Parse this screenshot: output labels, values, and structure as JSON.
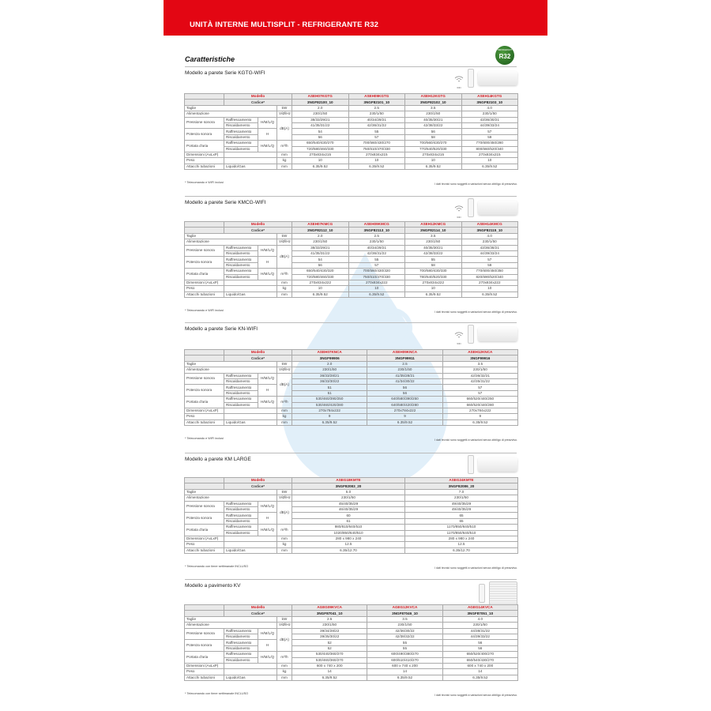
{
  "header": {
    "title": "UNITÀ INTERNE MULTISPLIT - REFRIGERANTE R32"
  },
  "page_title": "Caratteristiche",
  "badge": {
    "text": "R32",
    "small": "REFRIGERANT",
    "color": "#2f7a2a"
  },
  "colors": {
    "brand": "#e30613",
    "model_text": "#d71920"
  },
  "labels": {
    "modello": "Modello",
    "codice": "Codice*",
    "taglie": "Taglie",
    "alimentazione": "Alimentazione",
    "pressione": "Pressione sonora",
    "potenza": "Potenza sonora",
    "portata": "Portata d'aria",
    "dimensioni": "Dimensioni (AxLxP)",
    "peso": "Peso",
    "attacchi": "Attacchi tubazioni",
    "raffrescamento": "Raffrescamento",
    "riscaldamento": "Riscaldamento",
    "hmlq": "H/M/L/Q",
    "h": "H",
    "liquido_gas": "Liquido/Gas",
    "u_kw": "kW",
    "u_v": "V/Ø/Hz",
    "u_db": "dB(A)",
    "u_m3h": "m³/h",
    "u_mm": "mm",
    "u_kg": "kg",
    "disclaimer": "I dati tecnici sono soggetti a variazioni senza obbligo di preavviso."
  },
  "sections": [
    {
      "title": "Modello a parete Serie KGTG-WIFI",
      "icons": [
        "wifi-icon",
        "remote-control-icon",
        "wall-unit-icon"
      ],
      "wifi_label": "WIFI",
      "footnote": "* Telecomando e WIFI inclusi",
      "red_divider": true,
      "models": [
        {
          "model": "ASEH07KGTG",
          "code": "3NGF82100_10",
          "taglie": "2.0",
          "alim": "230/1/50",
          "p_raff": "38/33/29/21",
          "p_risc": "41/35/31/22",
          "w_raff": "54",
          "w_risc": "56",
          "a_raff": "650/540/430/270",
          "a_risc": "720/580/460/330",
          "dim": "270x834x215",
          "peso": "10",
          "att": "6.35/9.52"
        },
        {
          "model": "ASEH09KGTG",
          "code": "3NGF82101_10",
          "taglie": "2.5",
          "alim": "230/1/50",
          "p_raff": "40/34/29/21",
          "p_risc": "42/36/31/22",
          "w_raff": "55",
          "w_risc": "57",
          "a_raff": "700/560/430/270",
          "a_risc": "750/610/470/330",
          "dim": "270x834x215",
          "peso": "10",
          "att": "6.35/9.52"
        },
        {
          "model": "ASEH12KGTG",
          "code": "3NGF82102_10",
          "taglie": "3.5",
          "alim": "230/1/50",
          "p_raff": "40/35/30/21",
          "p_risc": "42/38/33/22",
          "w_raff": "56",
          "w_risc": "58",
          "a_raff": "700/560/430/270",
          "a_risc": "770/640/520/330",
          "dim": "270x834x215",
          "peso": "10",
          "att": "6.35/9.52"
        },
        {
          "model": "ASEH14KGTG",
          "code": "3NGF82103_10",
          "taglie": "4.0",
          "alim": "230/1/50",
          "p_raff": "43/36/30/21",
          "p_risc": "44/39/33/24",
          "w_raff": "57",
          "w_risc": "59",
          "a_raff": "770/600/450/280",
          "a_risc": "800/660/520/340",
          "dim": "270x834x215",
          "peso": "10",
          "att": "6.35/9.52"
        }
      ]
    },
    {
      "title": "Modello a parete Serie KMCG-WIFI",
      "icons": [
        "wifi-icon",
        "remote-control-icon",
        "wall-unit-icon"
      ],
      "wifi_label": "WIFI",
      "footnote": "* Telecomando e WIFI inclusi",
      "red_divider": false,
      "models": [
        {
          "model": "ASEH07KMCG",
          "code": "3NGF82112_10",
          "taglie": "2.0",
          "alim": "230/1/50",
          "p_raff": "38/33/29/21",
          "p_risc": "41/35/31/22",
          "w_raff": "54",
          "w_risc": "56",
          "a_raff": "650/540/430/320",
          "a_risc": "720/580/460/330",
          "dim": "270x834x222",
          "peso": "10",
          "att": "6.35/9.52"
        },
        {
          "model": "ASEH09KMCG",
          "code": "3NGF82113_10",
          "taglie": "2.5",
          "alim": "230/1/50",
          "p_raff": "40/34/29/21",
          "p_risc": "42/36/31/22",
          "w_raff": "55",
          "w_risc": "57",
          "a_raff": "700/560/430/320",
          "a_risc": "750/610/470/330",
          "dim": "270x834x222",
          "peso": "10",
          "att": "6.35/9.52"
        },
        {
          "model": "ASEH12KMCG",
          "code": "3NGF82114_10",
          "taglie": "3.5",
          "alim": "230/1/50",
          "p_raff": "40/35/30/21",
          "p_risc": "42/38/33/22",
          "w_raff": "55",
          "w_risc": "58",
          "a_raff": "700/580/430/330",
          "a_risc": "780/640/520/330",
          "dim": "270x834x222",
          "peso": "10",
          "att": "6.35/9.52"
        },
        {
          "model": "ASEH14KMCG",
          "code": "3NGF82115_10",
          "taglie": "4.0",
          "alim": "230/1/50",
          "p_raff": "43/36/38/21",
          "p_risc": "44/39/33/24",
          "w_raff": "57",
          "w_risc": "59",
          "a_raff": "770/600/450/350",
          "a_risc": "820/690/520/340",
          "dim": "270x834x222",
          "peso": "10",
          "att": "6.35/9.52"
        }
      ]
    },
    {
      "title": "Modello a parete Serie KN-WIFI",
      "icons": [
        "wifi-icon",
        "remote-control-icon",
        "wall-unit-icon"
      ],
      "wifi_label": "WIFI",
      "footnote": "* Telecomando e WIFI inclusi",
      "red_divider": false,
      "models": [
        {
          "model": "ASEH07KNCA",
          "code": "3NGF99906",
          "taglie": "2.0",
          "alim": "230/1/50",
          "p_raff": "36/33/28/21",
          "p_risc": "36/33/30/22",
          "w_raff": "51",
          "w_risc": "51",
          "a_raff": "530/460/390/250",
          "a_risc": "530/460/420/280",
          "dim": "270x784x222",
          "peso": "9",
          "att": "6.35/9.52"
        },
        {
          "model": "ASEH09KNCA",
          "code": "3NGF99911",
          "taglie": "2.5",
          "alim": "230/1/50",
          "p_raff": "41/35/28/21",
          "p_risc": "41/34/30/22",
          "w_raff": "56",
          "w_risc": "56",
          "a_raff": "640/580/390/250",
          "a_risc": "640/580/420/280",
          "dim": "270x784x222",
          "peso": "9",
          "att": "6.35/9.52"
        },
        {
          "model": "ASEH12KNCA",
          "code": "3NGF99916",
          "taglie": "3.5",
          "alim": "230/1/50",
          "p_raff": "42/36/32/21",
          "p_risc": "42/35/31/22",
          "w_raff": "57",
          "w_risc": "57",
          "a_raff": "660/520/440/250",
          "a_risc": "660/520/440/280",
          "dim": "270x784x222",
          "peso": "9",
          "att": "6.35/9.52"
        }
      ]
    },
    {
      "title": "Modello a parete KM LARGE",
      "icons": [
        "remote-control-icon",
        "wall-unit-icon"
      ],
      "footnote": "* Telecomando con timer settimanale INCLUSO",
      "red_divider": true,
      "models": [
        {
          "model": "ASEG18KMTE",
          "code": "3NGF82083_20",
          "taglie": "5.0",
          "alim": "230/1/50",
          "p_raff": "45/40/35/29",
          "p_risc": "46/40/35/29",
          "w_raff": "60",
          "w_risc": "61",
          "a_raff": "980/810/640/510",
          "a_risc": "1020/850/640/510",
          "dim": "280 x 980 x 240",
          "peso": "12.5",
          "att": "6.35/12.70"
        },
        {
          "model": "ASEG24KMTE",
          "code": "3NGF82086_20",
          "taglie": "7.0",
          "alim": "230/1/50",
          "p_raff": "49/40/35/29",
          "p_risc": "49/40/35/29",
          "w_raff": "65",
          "w_risc": "65",
          "a_raff": "1170/850/640/510",
          "a_risc": "1170/850/640/510",
          "dim": "280 x 980 x 240",
          "peso": "12.5",
          "att": "6.35/12.70"
        }
      ]
    },
    {
      "title": "Modello a pavimento KV",
      "icons": [
        "remote-control-icon",
        "floor-unit-icon"
      ],
      "footnote": "* Telecomando con timer settimanale INCLUSO",
      "red_divider": true,
      "models": [
        {
          "model": "AGEG09KVCA",
          "code": "3NGF87041_10",
          "taglie": "2.5",
          "alim": "230/1/50",
          "p_raff": "39/34/28/22",
          "p_risc": "39/35/30/22",
          "w_raff": "52",
          "w_risc": "52",
          "a_raff": "530/440/360/270",
          "a_risc": "530/460/360/270",
          "dim": "600 x 740 x 200",
          "peso": "14",
          "att": "6.35/9.52"
        },
        {
          "model": "AGEG12KVCA",
          "code": "3NGF87046_10",
          "taglie": "3.5",
          "alim": "230/1/50",
          "p_raff": "42/36/30/22",
          "p_risc": "42/38/32/22",
          "w_raff": "55",
          "w_risc": "55",
          "a_raff": "600/490/380/270",
          "a_risc": "600/510/410/270",
          "dim": "600 x 740 x 200",
          "peso": "14",
          "att": "6.35/9.52"
        },
        {
          "model": "AGEG14KVCA",
          "code": "3NGF87051_10",
          "taglie": "4.0",
          "alim": "230/1/50",
          "p_raff": "44/38/31/22",
          "p_risc": "44/39/33/22",
          "w_raff": "56",
          "w_risc": "56",
          "a_raff": "650/520/400/270",
          "a_risc": "650/540/430/270",
          "dim": "600 x 740 x 200",
          "peso": "14",
          "att": "6.35/9.52"
        }
      ]
    }
  ]
}
